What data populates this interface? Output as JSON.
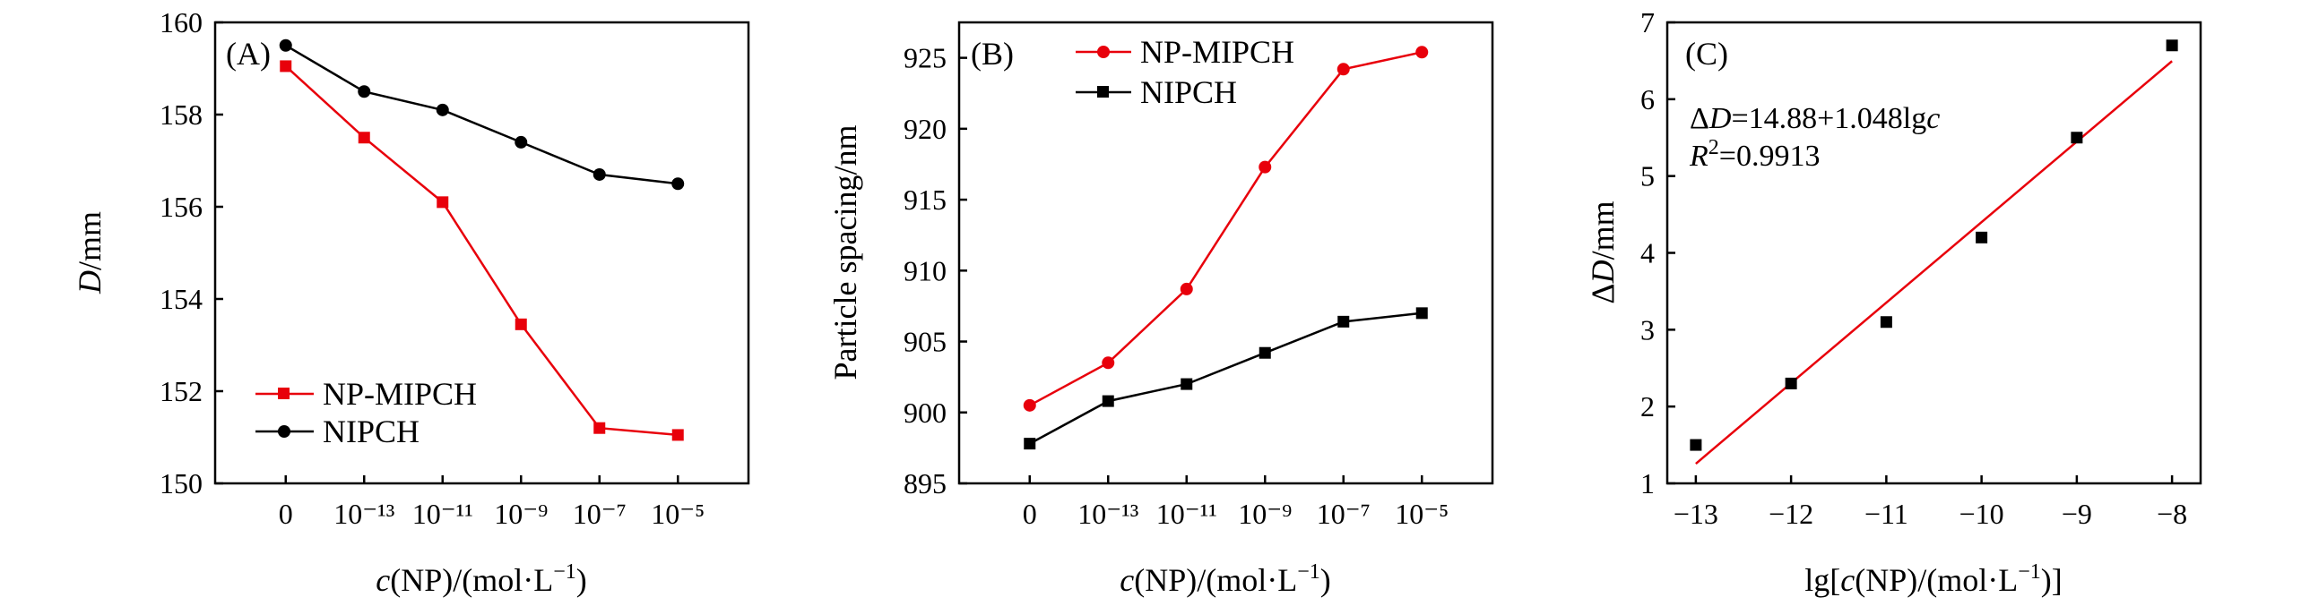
{
  "chart_data": [
    {
      "id": "A",
      "type": "line",
      "panel_label": "(A)",
      "title": "",
      "xlabel": "c(NP)/(mol·L⁻¹)",
      "ylabel": "D/mm",
      "categories": [
        "0",
        "10⁻¹³",
        "10⁻¹¹",
        "10⁻⁹",
        "10⁻⁷",
        "10⁻⁵"
      ],
      "ylim": [
        150,
        160
      ],
      "yticks": [
        "150",
        "152",
        "154",
        "156",
        "158",
        "160"
      ],
      "legend_position": "bottom-left",
      "series": [
        {
          "name": "NP-MIPCH",
          "color": "#e8000b",
          "marker": "square",
          "values": [
            159.05,
            157.5,
            156.1,
            153.45,
            151.2,
            151.05
          ]
        },
        {
          "name": "NIPCH",
          "color": "#000000",
          "marker": "circle",
          "values": [
            159.5,
            158.5,
            158.1,
            157.4,
            156.7,
            156.5
          ]
        }
      ]
    },
    {
      "id": "B",
      "type": "line",
      "panel_label": "(B)",
      "title": "",
      "xlabel": "c(NP)/(mol·L⁻¹)",
      "ylabel": "Particle spacing/nm",
      "categories": [
        "0",
        "10⁻¹³",
        "10⁻¹¹",
        "10⁻⁹",
        "10⁻⁷",
        "10⁻⁵"
      ],
      "ylim": [
        895,
        927.5
      ],
      "yticks": [
        "895",
        "900",
        "905",
        "910",
        "915",
        "920",
        "925"
      ],
      "legend_position": "top-left",
      "series": [
        {
          "name": "NP-MIPCH",
          "color": "#e8000b",
          "marker": "circle",
          "values": [
            900.5,
            903.5,
            908.7,
            917.3,
            924.2,
            925.4
          ]
        },
        {
          "name": "NIPCH",
          "color": "#000000",
          "marker": "square",
          "values": [
            897.8,
            900.8,
            902.0,
            904.2,
            906.4,
            907.0
          ]
        }
      ]
    },
    {
      "id": "C",
      "type": "scatter",
      "panel_label": "(C)",
      "title": "",
      "xlabel": "lg[c(NP)/(mol·L⁻¹)]",
      "ylabel": "ΔD/mm",
      "xlim": [
        -13.3,
        -7.7
      ],
      "ylim": [
        1,
        7
      ],
      "xticks": [
        "−13",
        "−12",
        "−11",
        "−10",
        "−9",
        "−8"
      ],
      "yticks": [
        "1",
        "2",
        "3",
        "4",
        "5",
        "6",
        "7"
      ],
      "points": {
        "x": [
          -13,
          -12,
          -11,
          -10,
          -9,
          -8
        ],
        "y": [
          1.5,
          2.3,
          3.1,
          4.2,
          5.5,
          6.7
        ]
      },
      "fit": {
        "slope": 1.048,
        "intercept": 14.88,
        "x_range": [
          -13,
          -8
        ],
        "color": "#e8000b"
      },
      "annotations": {
        "equation": "ΔD=14.88+1.048lgc",
        "r2": "R²=0.9913"
      }
    }
  ]
}
